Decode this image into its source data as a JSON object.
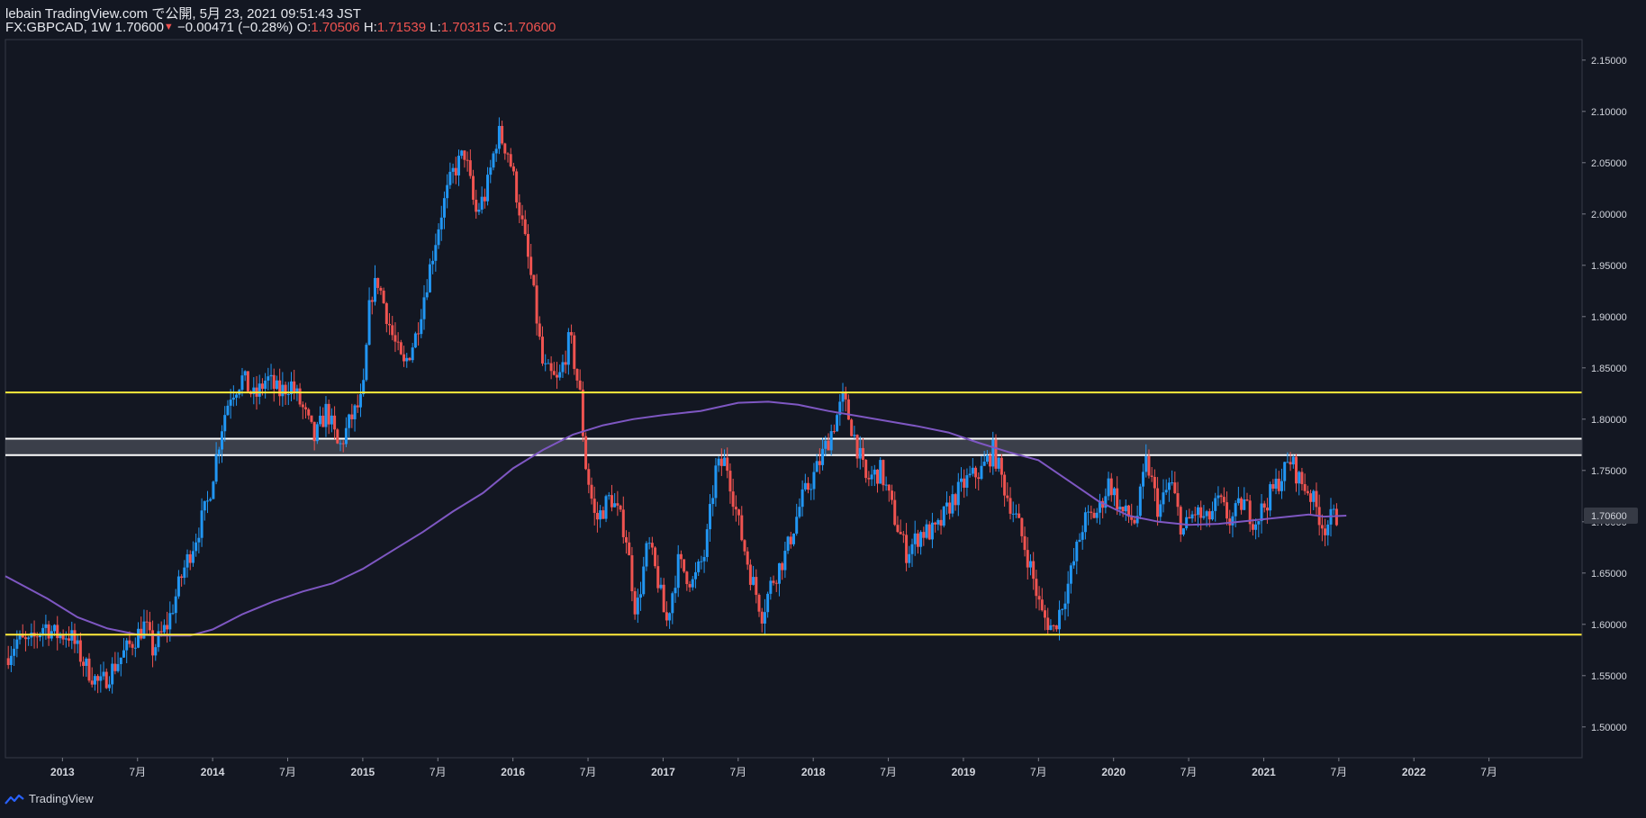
{
  "header": {
    "line1": "lebain TradingView.com で公開, 5月 23, 2021 09:51:43 JST",
    "symbol": "FX:GBPCAD, 1W 1.70600",
    "change_arrow": "▼",
    "change": "−0.00471 (−0.28%)",
    "open_label": "O:",
    "open_value": "1.70506",
    "high_label": "H:",
    "high_value": "1.71539",
    "low_label": "L:",
    "low_value": "1.70315",
    "close_label": "C:",
    "close_value": "1.70600"
  },
  "footer": {
    "brand": "TradingView"
  },
  "colors": {
    "background": "#131722",
    "up": "#2196f3",
    "down": "#ef5350",
    "ma": "#7e57c2",
    "support_resistance": "#ffeb3b",
    "zone": "#ffffff"
  },
  "chart_data": {
    "type": "candlestick",
    "title": "FX:GBPCAD, 1W",
    "ylim": [
      1.47,
      2.17
    ],
    "yticks": [
      "2.15000",
      "2.10000",
      "2.05000",
      "2.00000",
      "1.95000",
      "1.90000",
      "1.85000",
      "1.80000",
      "1.75000",
      "1.70000",
      "1.65000",
      "1.60000",
      "1.55000",
      "1.50000"
    ],
    "xlim": [
      2012.62,
      2023.12
    ],
    "xticks": [
      {
        "t": 2013.0,
        "label": "2013",
        "bold": true
      },
      {
        "t": 2013.5,
        "label": "7月",
        "bold": false
      },
      {
        "t": 2014.0,
        "label": "2014",
        "bold": true
      },
      {
        "t": 2014.5,
        "label": "7月",
        "bold": false
      },
      {
        "t": 2015.0,
        "label": "2015",
        "bold": true
      },
      {
        "t": 2015.5,
        "label": "7月",
        "bold": false
      },
      {
        "t": 2016.0,
        "label": "2016",
        "bold": true
      },
      {
        "t": 2016.5,
        "label": "7月",
        "bold": false
      },
      {
        "t": 2017.0,
        "label": "2017",
        "bold": true
      },
      {
        "t": 2017.5,
        "label": "7月",
        "bold": false
      },
      {
        "t": 2018.0,
        "label": "2018",
        "bold": true
      },
      {
        "t": 2018.5,
        "label": "7月",
        "bold": false
      },
      {
        "t": 2019.0,
        "label": "2019",
        "bold": true
      },
      {
        "t": 2019.5,
        "label": "7月",
        "bold": false
      },
      {
        "t": 2020.0,
        "label": "2020",
        "bold": true
      },
      {
        "t": 2020.5,
        "label": "7月",
        "bold": false
      },
      {
        "t": 2021.0,
        "label": "2021",
        "bold": true
      },
      {
        "t": 2021.5,
        "label": "7月",
        "bold": false
      },
      {
        "t": 2022.0,
        "label": "2022",
        "bold": true
      },
      {
        "t": 2022.5,
        "label": "7月",
        "bold": false
      }
    ],
    "last_price_label": "1.70600",
    "last_price": 1.706,
    "horizontal_lines": [
      {
        "name": "resistance",
        "price": 1.826,
        "color": "#ffeb3b"
      },
      {
        "name": "support",
        "price": 1.59,
        "color": "#ffeb3b"
      }
    ],
    "zone": {
      "top": 1.781,
      "bottom": 1.765
    },
    "ma_series": [
      [
        2012.62,
        1.647
      ],
      [
        2012.9,
        1.625
      ],
      [
        2013.1,
        1.607
      ],
      [
        2013.3,
        1.596
      ],
      [
        2013.5,
        1.59
      ],
      [
        2013.65,
        1.589
      ],
      [
        2013.85,
        1.589
      ],
      [
        2014.0,
        1.595
      ],
      [
        2014.2,
        1.61
      ],
      [
        2014.4,
        1.622
      ],
      [
        2014.6,
        1.632
      ],
      [
        2014.8,
        1.64
      ],
      [
        2015.0,
        1.654
      ],
      [
        2015.2,
        1.672
      ],
      [
        2015.4,
        1.69
      ],
      [
        2015.6,
        1.71
      ],
      [
        2015.8,
        1.728
      ],
      [
        2016.0,
        1.752
      ],
      [
        2016.2,
        1.77
      ],
      [
        2016.4,
        1.785
      ],
      [
        2016.6,
        1.794
      ],
      [
        2016.8,
        1.8
      ],
      [
        2017.0,
        1.804
      ],
      [
        2017.25,
        1.808
      ],
      [
        2017.5,
        1.816
      ],
      [
        2017.7,
        1.817
      ],
      [
        2017.9,
        1.814
      ],
      [
        2018.1,
        1.808
      ],
      [
        2018.3,
        1.803
      ],
      [
        2018.5,
        1.798
      ],
      [
        2018.7,
        1.793
      ],
      [
        2018.9,
        1.787
      ],
      [
        2019.1,
        1.777
      ],
      [
        2019.3,
        1.768
      ],
      [
        2019.5,
        1.76
      ],
      [
        2019.7,
        1.74
      ],
      [
        2019.9,
        1.72
      ],
      [
        2020.1,
        1.706
      ],
      [
        2020.3,
        1.7
      ],
      [
        2020.5,
        1.697
      ],
      [
        2020.7,
        1.698
      ],
      [
        2020.9,
        1.701
      ],
      [
        2021.1,
        1.704
      ],
      [
        2021.3,
        1.707
      ],
      [
        2021.4,
        1.705
      ],
      [
        2021.55,
        1.706
      ]
    ],
    "price_path": [
      [
        2012.62,
        1.567
      ],
      [
        2012.7,
        1.585
      ],
      [
        2012.78,
        1.58
      ],
      [
        2012.88,
        1.6
      ],
      [
        2012.95,
        1.59
      ],
      [
        2013.05,
        1.59
      ],
      [
        2013.15,
        1.56
      ],
      [
        2013.25,
        1.54
      ],
      [
        2013.35,
        1.56
      ],
      [
        2013.45,
        1.58
      ],
      [
        2013.55,
        1.6
      ],
      [
        2013.6,
        1.575
      ],
      [
        2013.7,
        1.6
      ],
      [
        2013.8,
        1.65
      ],
      [
        2013.9,
        1.69
      ],
      [
        2013.97,
        1.72
      ],
      [
        2014.02,
        1.76
      ],
      [
        2014.07,
        1.8
      ],
      [
        2014.12,
        1.825
      ],
      [
        2014.2,
        1.84
      ],
      [
        2014.28,
        1.82
      ],
      [
        2014.36,
        1.84
      ],
      [
        2014.44,
        1.825
      ],
      [
        2014.52,
        1.835
      ],
      [
        2014.6,
        1.81
      ],
      [
        2014.68,
        1.78
      ],
      [
        2014.76,
        1.81
      ],
      [
        2014.84,
        1.77
      ],
      [
        2014.92,
        1.8
      ],
      [
        2015.0,
        1.82
      ],
      [
        2015.05,
        1.92
      ],
      [
        2015.1,
        1.935
      ],
      [
        2015.2,
        1.88
      ],
      [
        2015.27,
        1.85
      ],
      [
        2015.35,
        1.88
      ],
      [
        2015.45,
        1.95
      ],
      [
        2015.52,
        2.0
      ],
      [
        2015.6,
        2.04
      ],
      [
        2015.68,
        2.06
      ],
      [
        2015.75,
        2.0
      ],
      [
        2015.82,
        2.02
      ],
      [
        2015.9,
        2.08
      ],
      [
        2015.97,
        2.06
      ],
      [
        2016.05,
        2.0
      ],
      [
        2016.13,
        1.93
      ],
      [
        2016.2,
        1.85
      ],
      [
        2016.3,
        1.835
      ],
      [
        2016.38,
        1.88
      ],
      [
        2016.45,
        1.82
      ],
      [
        2016.48,
        1.76
      ],
      [
        2016.55,
        1.7
      ],
      [
        2016.65,
        1.725
      ],
      [
        2016.75,
        1.69
      ],
      [
        2016.82,
        1.61
      ],
      [
        2016.9,
        1.68
      ],
      [
        2016.97,
        1.64
      ],
      [
        2017.02,
        1.6
      ],
      [
        2017.1,
        1.66
      ],
      [
        2017.2,
        1.64
      ],
      [
        2017.28,
        1.67
      ],
      [
        2017.35,
        1.75
      ],
      [
        2017.42,
        1.76
      ],
      [
        2017.5,
        1.7
      ],
      [
        2017.58,
        1.65
      ],
      [
        2017.66,
        1.61
      ],
      [
        2017.72,
        1.64
      ],
      [
        2017.82,
        1.67
      ],
      [
        2017.92,
        1.72
      ],
      [
        2018.02,
        1.75
      ],
      [
        2018.1,
        1.78
      ],
      [
        2018.2,
        1.82
      ],
      [
        2018.28,
        1.78
      ],
      [
        2018.35,
        1.74
      ],
      [
        2018.45,
        1.75
      ],
      [
        2018.55,
        1.7
      ],
      [
        2018.62,
        1.67
      ],
      [
        2018.72,
        1.69
      ],
      [
        2018.82,
        1.69
      ],
      [
        2018.92,
        1.72
      ],
      [
        2019.02,
        1.74
      ],
      [
        2019.12,
        1.75
      ],
      [
        2019.2,
        1.77
      ],
      [
        2019.28,
        1.73
      ],
      [
        2019.36,
        1.7
      ],
      [
        2019.44,
        1.66
      ],
      [
        2019.52,
        1.61
      ],
      [
        2019.6,
        1.595
      ],
      [
        2019.7,
        1.64
      ],
      [
        2019.8,
        1.7
      ],
      [
        2019.9,
        1.71
      ],
      [
        2019.97,
        1.74
      ],
      [
        2020.05,
        1.71
      ],
      [
        2020.15,
        1.7
      ],
      [
        2020.22,
        1.76
      ],
      [
        2020.3,
        1.71
      ],
      [
        2020.38,
        1.74
      ],
      [
        2020.46,
        1.69
      ],
      [
        2020.54,
        1.71
      ],
      [
        2020.62,
        1.7
      ],
      [
        2020.7,
        1.72
      ],
      [
        2020.78,
        1.7
      ],
      [
        2020.86,
        1.72
      ],
      [
        2020.94,
        1.7
      ],
      [
        2021.02,
        1.72
      ],
      [
        2021.1,
        1.74
      ],
      [
        2021.18,
        1.76
      ],
      [
        2021.24,
        1.74
      ],
      [
        2021.3,
        1.73
      ],
      [
        2021.36,
        1.71
      ],
      [
        2021.4,
        1.694
      ],
      [
        2021.45,
        1.703
      ],
      [
        2021.5,
        1.706
      ]
    ]
  }
}
